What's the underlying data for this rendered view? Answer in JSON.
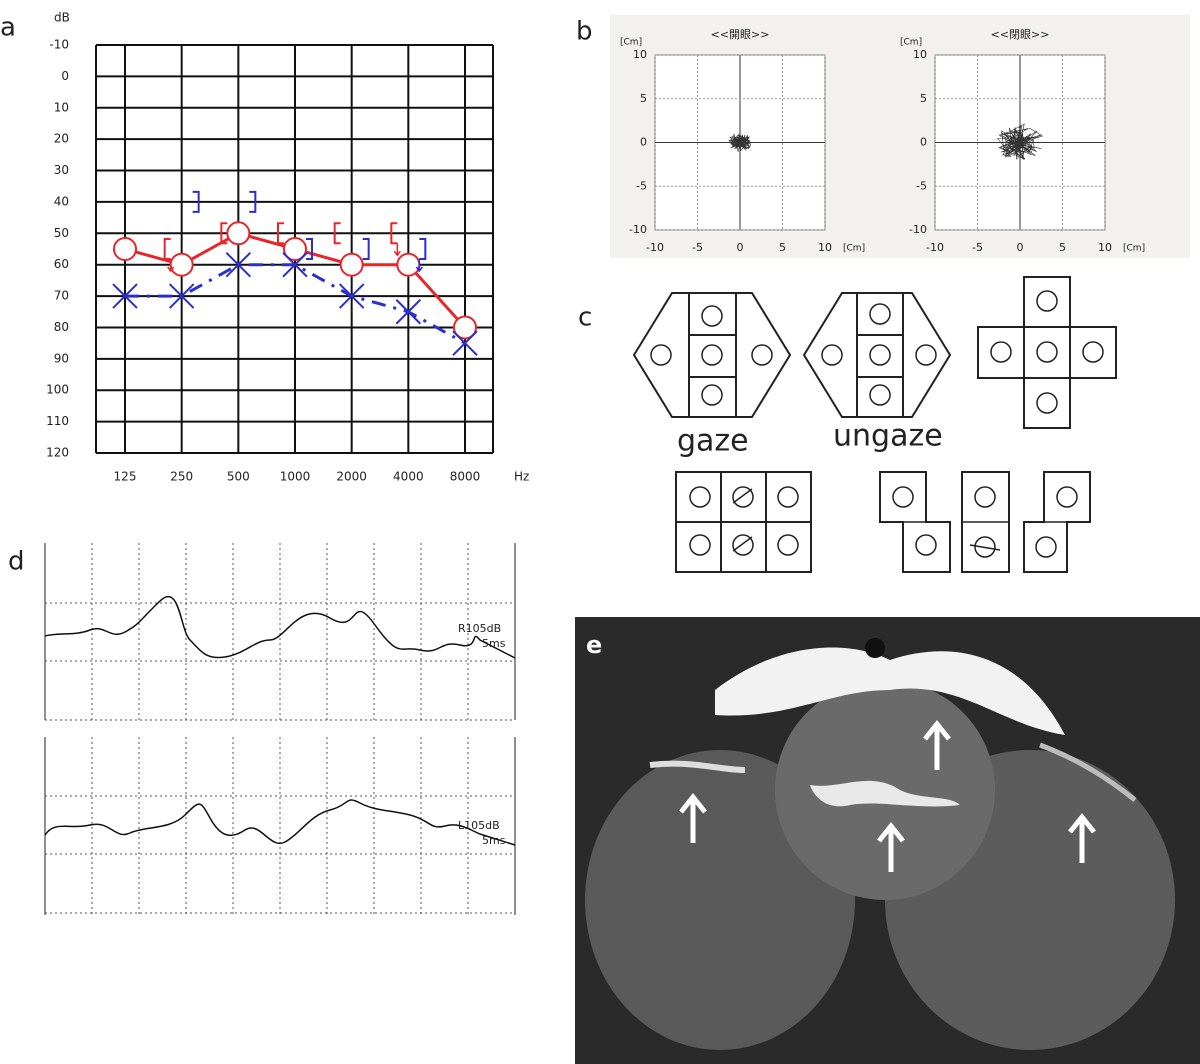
{
  "panel_labels": [
    "a",
    "b",
    "c",
    "d",
    "e"
  ],
  "chart_data": [
    {
      "type": "line",
      "ylabel": "dB",
      "xlabel": "Hz",
      "categories": [
        "125",
        "250",
        "500",
        "1000",
        "2000",
        "4000",
        "8000"
      ],
      "ylim": [
        -10,
        120
      ],
      "yticks": [
        -10,
        0,
        10,
        20,
        30,
        40,
        50,
        60,
        70,
        80,
        90,
        100,
        110,
        120
      ],
      "y_inverted": true,
      "grid": true,
      "series": [
        {
          "color": "#e8262a",
          "marker": "circle",
          "line": "solid",
          "values": [
            55,
            60,
            50,
            55,
            60,
            60,
            80
          ]
        },
        {
          "color": "#2b2fd0",
          "marker": "cross",
          "line": "dashdot",
          "values": [
            70,
            70,
            60,
            60,
            70,
            75,
            85
          ]
        },
        {
          "color": "#e8262a",
          "marker": "bracket-left",
          "line": "none",
          "values": [
            null,
            55,
            50,
            50,
            50,
            50,
            null
          ],
          "no_response": [
            false,
            true,
            false,
            false,
            false,
            true,
            false
          ]
        },
        {
          "color": "#2b2fd0",
          "marker": "bracket-right",
          "line": "none",
          "values": [
            null,
            40,
            40,
            55,
            55,
            55,
            null
          ],
          "no_response": [
            false,
            false,
            false,
            false,
            false,
            true,
            false
          ]
        }
      ]
    },
    {
      "type": "trace",
      "title": "<<開眼>>",
      "unit": "[Cm]",
      "xlim": [
        -10,
        10
      ],
      "ylim": [
        -10,
        10
      ],
      "xticks": [
        -10,
        -5,
        0,
        5,
        10
      ],
      "yticks": [
        -10,
        -5,
        0,
        5,
        10
      ],
      "grid": true
    },
    {
      "type": "trace",
      "title": "<<閉眼>>",
      "unit": "[Cm]",
      "xlim": [
        -10,
        10
      ],
      "ylim": [
        -10,
        10
      ],
      "xticks": [
        -10,
        -5,
        0,
        5,
        10
      ],
      "yticks": [
        -10,
        -5,
        0,
        5,
        10
      ],
      "grid": true
    }
  ],
  "nystagmus": {
    "labels": [
      "gaze",
      "ungaze"
    ]
  },
  "abr": {
    "traces": [
      {
        "label": "R105dB",
        "scale": "5ms"
      },
      {
        "label": "L105dB",
        "scale": "5ms"
      }
    ]
  }
}
